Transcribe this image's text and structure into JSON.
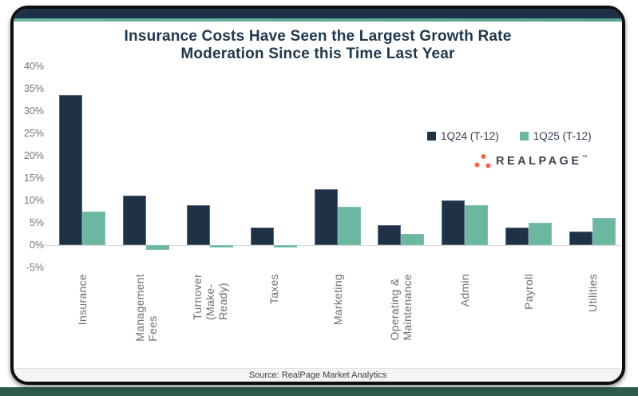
{
  "page": {
    "title_line1": "Insurance Costs Have Seen the Largest Growth Rate",
    "title_line2": "Moderation Since this Time Last Year",
    "source": "Source: RealPage Market Analytics"
  },
  "colors": {
    "navy": "#1f3147",
    "teal": "#6cb7a1",
    "bar_navy_edge": "#a9b8cd",
    "bar_teal_edge": "#9ed3c1",
    "header_bar": "#1e3048",
    "accent_line": "#6cb8a3",
    "title_text": "#20384e",
    "logo_orange": "#f2664a",
    "logo_text": "#3a444e",
    "bottom_strip": "#2c5b4c"
  },
  "legend": [
    {
      "label": "1Q24 (T-12)",
      "color": "#1f3147"
    },
    {
      "label": "1Q25 (T-12)",
      "color": "#6cb7a1"
    }
  ],
  "logo": {
    "text": "REALPAGE",
    "tm": "™"
  },
  "chart_data": {
    "type": "bar",
    "title": "Insurance Costs Have Seen the Largest Growth Rate Moderation Since this Time Last Year",
    "categories": [
      "Insurance",
      "Management\nFees",
      "Turnover\n(Make-Ready)",
      "Taxes",
      "Marketing",
      "Operating &\nMaintenance",
      "Admin",
      "Payroll",
      "Utilities"
    ],
    "series": [
      {
        "name": "1Q24 (T-12)",
        "color": "#1f3147",
        "values": [
          33.5,
          11,
          9,
          4,
          12.5,
          4.5,
          10,
          4,
          3
        ]
      },
      {
        "name": "1Q25 (T-12)",
        "color": "#6cb7a1",
        "values": [
          7.5,
          -1,
          -0.5,
          -0.5,
          8.5,
          2.5,
          9,
          5,
          6
        ]
      }
    ],
    "ylabel": "",
    "xlabel": "",
    "y_ticks": [
      40,
      35,
      30,
      25,
      20,
      15,
      10,
      5,
      0,
      -5
    ],
    "y_tick_suffix": "%",
    "ylim": [
      -5,
      40
    ],
    "grid": false,
    "legend_position": "upper-right"
  }
}
